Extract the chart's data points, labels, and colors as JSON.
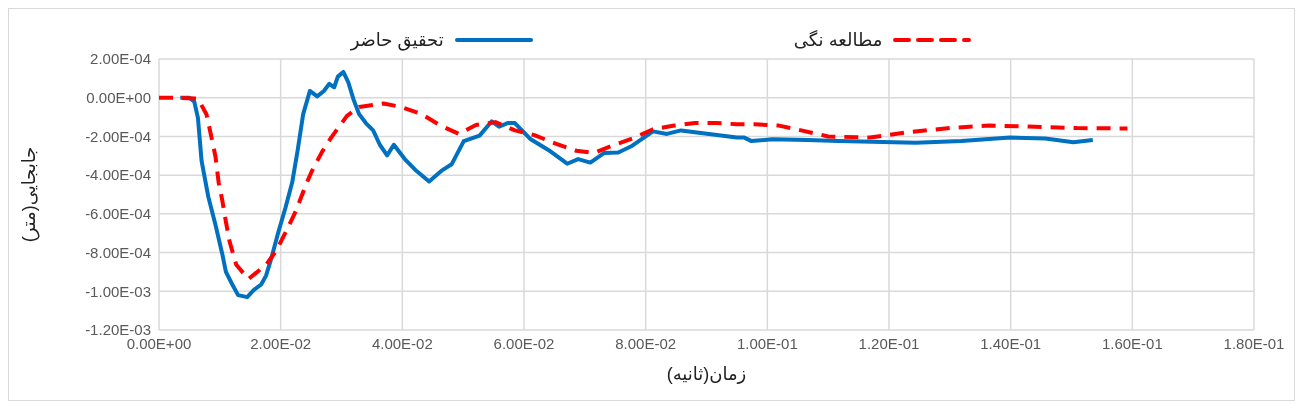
{
  "chart_data": {
    "type": "line",
    "xlabel": "زمان(ثانیه)",
    "ylabel": "جابجایی(متر)",
    "legend": "top",
    "grid": true,
    "marker": "none",
    "xlim": [
      0,
      0.18
    ],
    "xticks": [
      {
        "value": 0,
        "label": "0.00E+00"
      },
      {
        "value": 0.02,
        "label": "2.00E-02"
      },
      {
        "value": 0.04,
        "label": "4.00E-02"
      },
      {
        "value": 0.06,
        "label": "6.00E-02"
      },
      {
        "value": 0.08,
        "label": "8.00E-02"
      },
      {
        "value": 0.1,
        "label": "1.00E-01"
      },
      {
        "value": 0.12,
        "label": "1.20E-01"
      },
      {
        "value": 0.14,
        "label": "1.40E-01"
      },
      {
        "value": 0.16,
        "label": "1.60E-01"
      },
      {
        "value": 0.18,
        "label": "1.80E-01"
      }
    ],
    "ylim": [
      -0.0012,
      0.0002
    ],
    "yticks": [
      {
        "value": -0.0012,
        "label": "-1.20E-03"
      },
      {
        "value": -0.001,
        "label": "-1.00E-03"
      },
      {
        "value": -0.0008,
        "label": "-8.00E-04"
      },
      {
        "value": -0.0006,
        "label": "-6.00E-04"
      },
      {
        "value": -0.0004,
        "label": "-4.00E-04"
      },
      {
        "value": -0.0002,
        "label": "-2.00E-04"
      },
      {
        "value": 0,
        "label": "0.00E+00"
      },
      {
        "value": 0.0002,
        "label": "2.00E-04"
      }
    ],
    "series": [
      {
        "name": "تحقیق حاضر",
        "color": "#0070c0",
        "line_style": "solid",
        "x": [
          0.0035,
          0.005,
          0.0058,
          0.0064,
          0.007,
          0.0081,
          0.0093,
          0.0104,
          0.011,
          0.0119,
          0.013,
          0.0145,
          0.0156,
          0.0168,
          0.0176,
          0.0185,
          0.0196,
          0.0208,
          0.0219,
          0.0228,
          0.0237,
          0.0248,
          0.026,
          0.0271,
          0.028,
          0.0288,
          0.0294,
          0.0303,
          0.0311,
          0.032,
          0.0329,
          0.034,
          0.0352,
          0.0363,
          0.0375,
          0.0386,
          0.0404,
          0.0421,
          0.0444,
          0.0464,
          0.0481,
          0.0501,
          0.0527,
          0.0547,
          0.0559,
          0.0573,
          0.0585,
          0.0611,
          0.064,
          0.0671,
          0.0689,
          0.0709,
          0.0732,
          0.0755,
          0.0778,
          0.0812,
          0.0835,
          0.0858,
          0.095,
          0.0962,
          0.0974,
          0.1008,
          0.1066,
          0.1117,
          0.1244,
          0.1319,
          0.1399,
          0.1457,
          0.1503,
          0.1535
        ],
        "values": [
          0,
          0,
          -2e-05,
          -0.000104,
          -0.000326,
          -0.000511,
          -0.000659,
          -0.000807,
          -0.0009,
          -0.000956,
          -0.00102,
          -0.00103,
          -0.000993,
          -0.000965,
          -0.000919,
          -0.000826,
          -0.000696,
          -0.000567,
          -0.000437,
          -0.00027,
          -8.5e-05,
          3.5e-05,
          7e-06,
          3.5e-05,
          7.2e-05,
          5.4e-05,
          0.000109,
          0.000133,
          8.1e-05,
          -1.1e-05,
          -8.5e-05,
          -0.000131,
          -0.000169,
          -0.000243,
          -0.000298,
          -0.000243,
          -0.000317,
          -0.000372,
          -0.000433,
          -0.000378,
          -0.000344,
          -0.000224,
          -0.000196,
          -0.000122,
          -0.00015,
          -0.000131,
          -0.000131,
          -0.000215,
          -0.00027,
          -0.000341,
          -0.000317,
          -0.000335,
          -0.000285,
          -0.000283,
          -0.000248,
          -0.000174,
          -0.000187,
          -0.000169,
          -0.000206,
          -0.000206,
          -0.000224,
          -0.000215,
          -0.000219,
          -0.000224,
          -0.000233,
          -0.000224,
          -0.000206,
          -0.000211,
          -0.00023,
          -0.000219
        ]
      },
      {
        "name": "مطالعه نگی",
        "color": "#ff0000",
        "line_style": "dashed",
        "x": [
          0,
          0.0032,
          0.0064,
          0.0078,
          0.0087,
          0.0093,
          0.0098,
          0.0104,
          0.011,
          0.0116,
          0.0127,
          0.0147,
          0.0176,
          0.0193,
          0.0211,
          0.0225,
          0.0242,
          0.0251,
          0.0268,
          0.0283,
          0.0309,
          0.0329,
          0.0369,
          0.0398,
          0.0432,
          0.0461,
          0.0493,
          0.0521,
          0.0553,
          0.0585,
          0.0617,
          0.0652,
          0.0686,
          0.0715,
          0.0749,
          0.0778,
          0.0812,
          0.0847,
          0.0881,
          0.0916,
          0.095,
          0.0979,
          0.1019,
          0.1048,
          0.11,
          0.1169,
          0.1232,
          0.1301,
          0.1365,
          0.144,
          0.1509,
          0.1592
        ],
        "values": [
          0,
          0,
          -5e-06,
          -8.5e-05,
          -0.000215,
          -0.000307,
          -0.000437,
          -0.00053,
          -0.000641,
          -0.000743,
          -0.000863,
          -0.000937,
          -0.000863,
          -0.000789,
          -0.000678,
          -0.000585,
          -0.000446,
          -0.000381,
          -0.00028,
          -0.000206,
          -9.4e-05,
          -4.8e-05,
          -3e-05,
          -4.8e-05,
          -8.5e-05,
          -0.000141,
          -0.000187,
          -0.000141,
          -0.000126,
          -0.000169,
          -0.000193,
          -0.000237,
          -0.000274,
          -0.000285,
          -0.000243,
          -0.000211,
          -0.000163,
          -0.000144,
          -0.000131,
          -0.000131,
          -0.000137,
          -0.000137,
          -0.000144,
          -0.000163,
          -0.0002,
          -0.000206,
          -0.000178,
          -0.000156,
          -0.000144,
          -0.00015,
          -0.000157,
          -0.000159
        ]
      }
    ]
  }
}
